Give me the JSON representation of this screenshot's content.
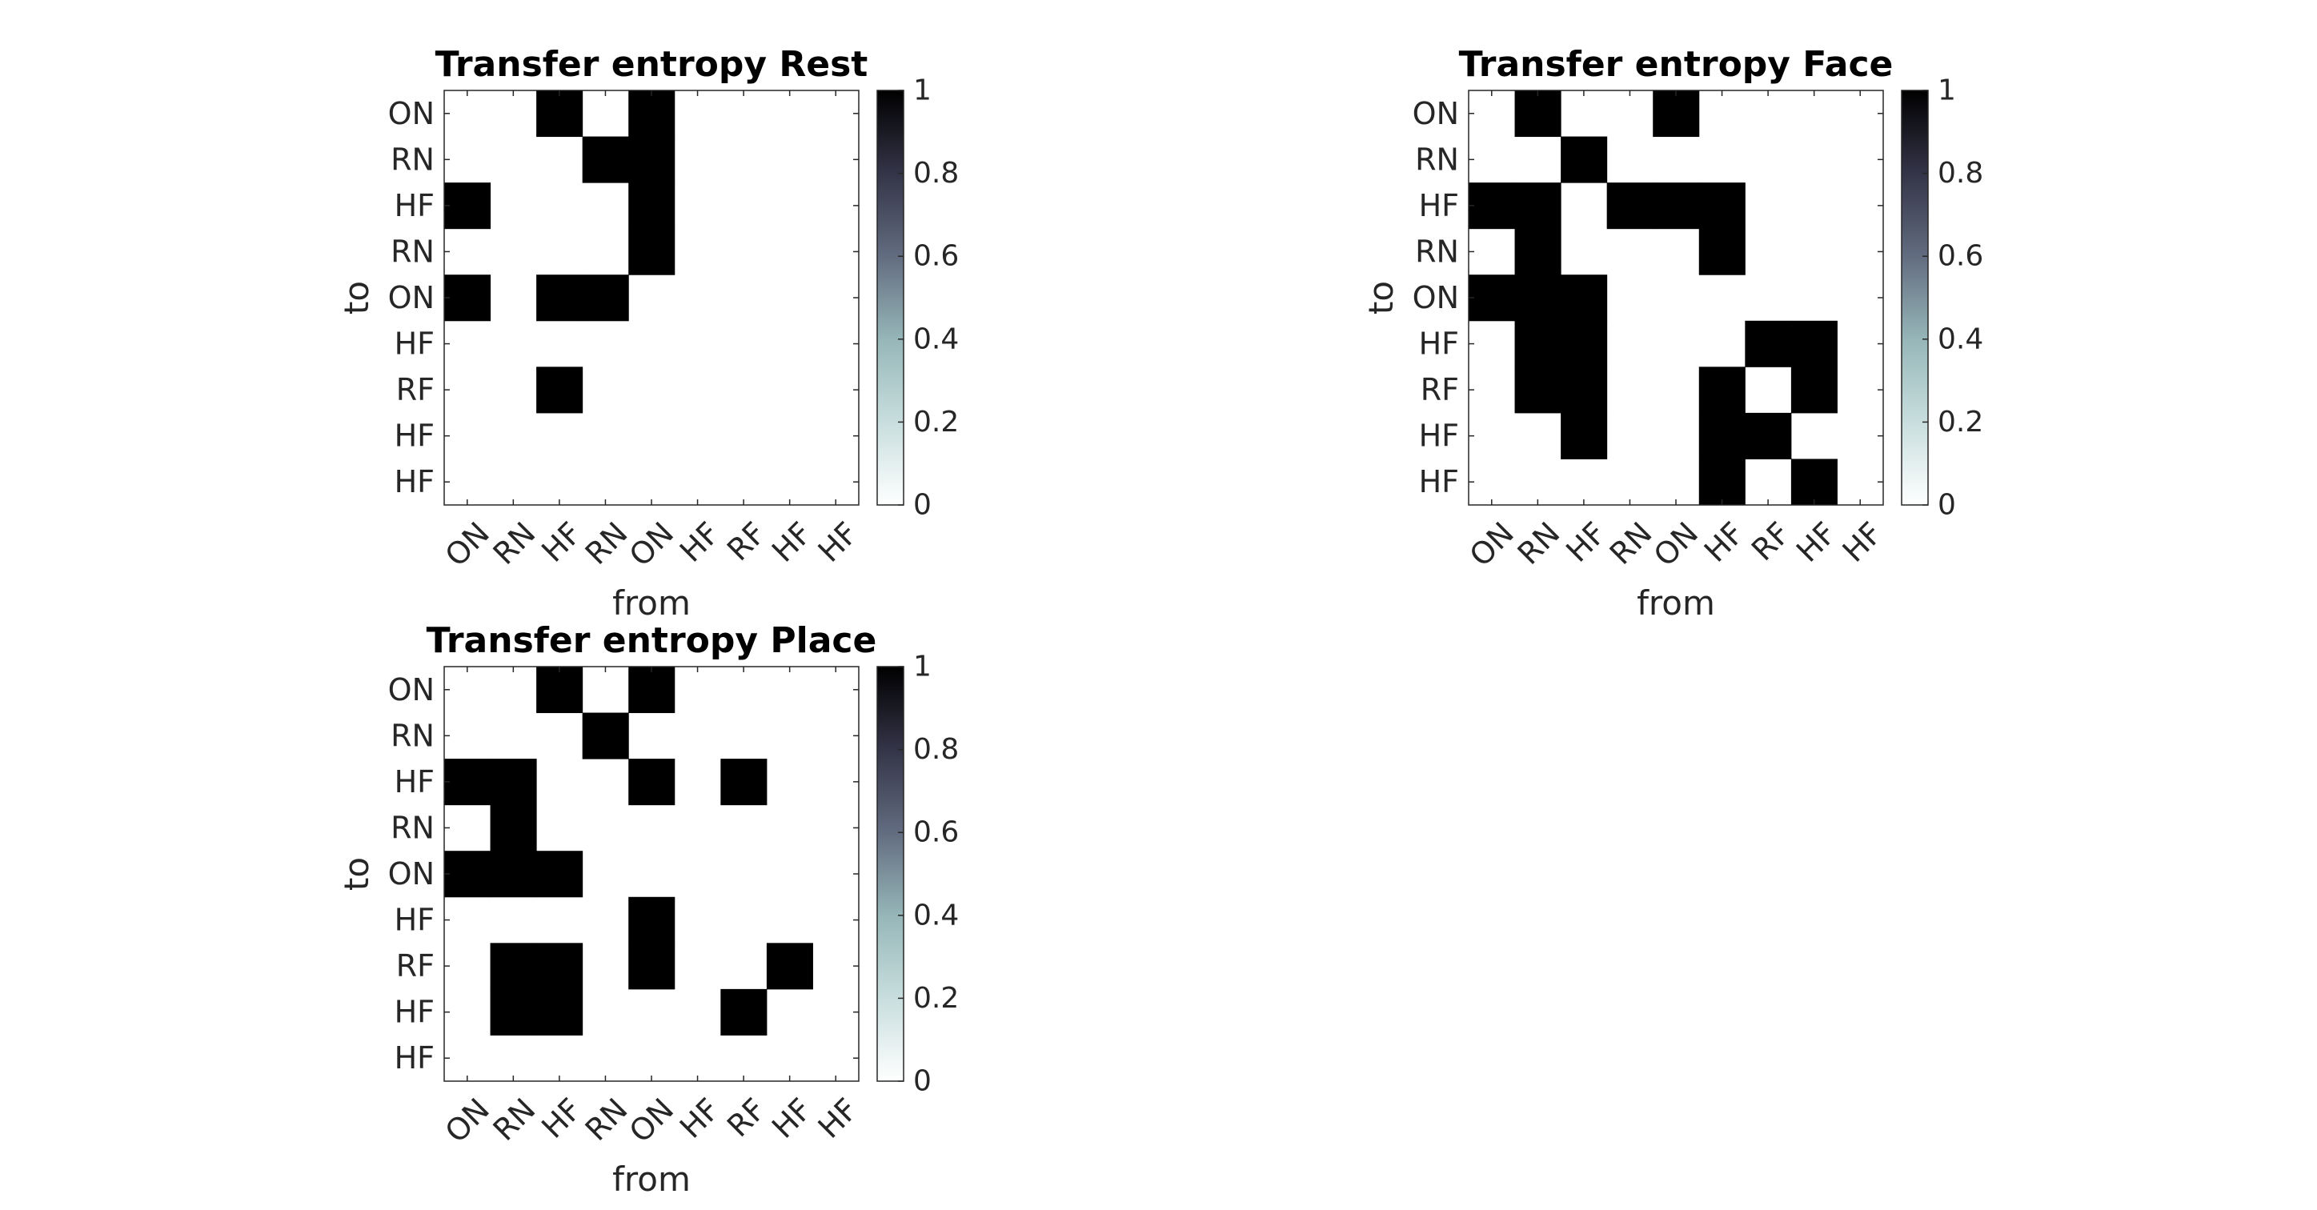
{
  "chart_data": [
    {
      "type": "heatmap",
      "title": "Transfer entropy Rest",
      "xlabel": "from",
      "ylabel": "to",
      "x_categories": [
        "ON",
        "RN",
        "HF",
        "RN",
        "ON",
        "HF",
        "RF",
        "HF",
        "HF"
      ],
      "y_categories": [
        "ON",
        "RN",
        "HF",
        "RN",
        "ON",
        "HF",
        "RF",
        "HF",
        "HF"
      ],
      "values": [
        [
          0,
          0,
          1,
          0,
          1,
          0,
          0,
          0,
          0
        ],
        [
          0,
          0,
          0,
          1,
          1,
          0,
          0,
          0,
          0
        ],
        [
          1,
          0,
          0,
          0,
          1,
          0,
          0,
          0,
          0
        ],
        [
          0,
          0,
          0,
          0,
          1,
          0,
          0,
          0,
          0
        ],
        [
          1,
          0,
          1,
          1,
          0,
          0,
          0,
          0,
          0
        ],
        [
          0,
          0,
          0,
          0,
          0,
          0,
          0,
          0,
          0
        ],
        [
          0,
          0,
          1,
          0,
          0,
          0,
          0,
          0,
          0
        ],
        [
          0,
          0,
          0,
          0,
          0,
          0,
          0,
          0,
          0
        ],
        [
          0,
          0,
          0,
          0,
          0,
          0,
          0,
          0,
          0
        ]
      ],
      "clim": [
        0,
        1
      ],
      "colorbar_ticks": [
        "0",
        "0.2",
        "0.4",
        "0.6",
        "0.8",
        "1"
      ],
      "colormap": "bone",
      "color_high": "#000000",
      "color_low": "#ffffff"
    },
    {
      "type": "heatmap",
      "title": "Transfer entropy Face",
      "xlabel": "from",
      "ylabel": "to",
      "x_categories": [
        "ON",
        "RN",
        "HF",
        "RN",
        "ON",
        "HF",
        "RF",
        "HF",
        "HF"
      ],
      "y_categories": [
        "ON",
        "RN",
        "HF",
        "RN",
        "ON",
        "HF",
        "RF",
        "HF",
        "HF"
      ],
      "values": [
        [
          0,
          1,
          0,
          0,
          1,
          0,
          0,
          0,
          0
        ],
        [
          0,
          0,
          1,
          0,
          0,
          0,
          0,
          0,
          0
        ],
        [
          1,
          1,
          0,
          1,
          1,
          1,
          0,
          0,
          0
        ],
        [
          0,
          1,
          0,
          0,
          0,
          1,
          0,
          0,
          0
        ],
        [
          1,
          1,
          1,
          0,
          0,
          0,
          0,
          0,
          0
        ],
        [
          0,
          1,
          1,
          0,
          0,
          0,
          1,
          1,
          0
        ],
        [
          0,
          1,
          1,
          0,
          0,
          1,
          0,
          1,
          0
        ],
        [
          0,
          0,
          1,
          0,
          0,
          1,
          1,
          0,
          0
        ],
        [
          0,
          0,
          0,
          0,
          0,
          1,
          0,
          1,
          0
        ]
      ],
      "clim": [
        0,
        1
      ],
      "colorbar_ticks": [
        "0",
        "0.2",
        "0.4",
        "0.6",
        "0.8",
        "1"
      ],
      "colormap": "bone",
      "color_high": "#000000",
      "color_low": "#ffffff"
    },
    {
      "type": "heatmap",
      "title": "Transfer entropy Place",
      "xlabel": "from",
      "ylabel": "to",
      "x_categories": [
        "ON",
        "RN",
        "HF",
        "RN",
        "ON",
        "HF",
        "RF",
        "HF",
        "HF"
      ],
      "y_categories": [
        "ON",
        "RN",
        "HF",
        "RN",
        "ON",
        "HF",
        "RF",
        "HF",
        "HF"
      ],
      "values": [
        [
          0,
          0,
          1,
          0,
          1,
          0,
          0,
          0,
          0
        ],
        [
          0,
          0,
          0,
          1,
          0,
          0,
          0,
          0,
          0
        ],
        [
          1,
          1,
          0,
          0,
          1,
          0,
          1,
          0,
          0
        ],
        [
          0,
          1,
          0,
          0,
          0,
          0,
          0,
          0,
          0
        ],
        [
          1,
          1,
          1,
          0,
          0,
          0,
          0,
          0,
          0
        ],
        [
          0,
          0,
          0,
          0,
          1,
          0,
          0,
          0,
          0
        ],
        [
          0,
          1,
          1,
          0,
          1,
          0,
          0,
          1,
          0
        ],
        [
          0,
          1,
          1,
          0,
          0,
          0,
          1,
          0,
          0
        ],
        [
          0,
          0,
          0,
          0,
          0,
          0,
          0,
          0,
          0
        ]
      ],
      "clim": [
        0,
        1
      ],
      "colorbar_ticks": [
        "0",
        "0.2",
        "0.4",
        "0.6",
        "0.8",
        "1"
      ],
      "colormap": "bone",
      "color_high": "#000000",
      "color_low": "#ffffff"
    }
  ]
}
